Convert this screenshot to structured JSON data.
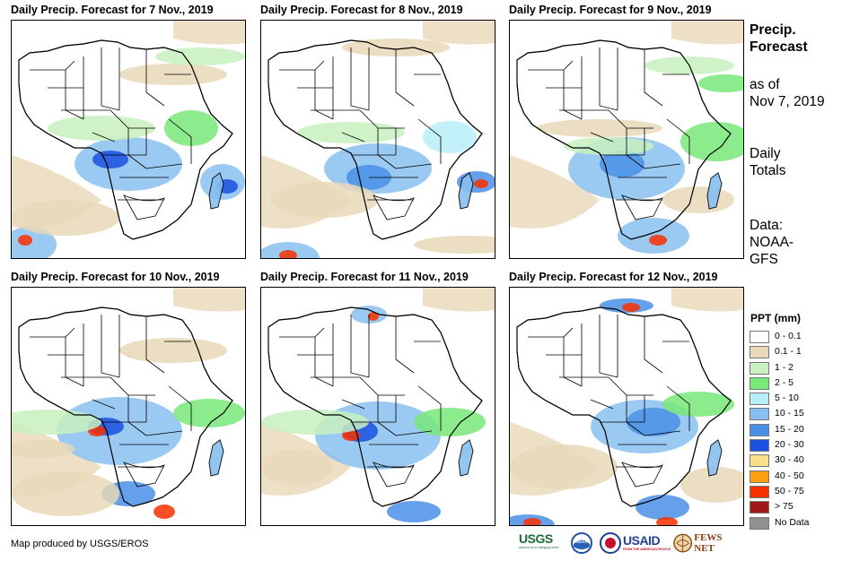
{
  "panels": [
    {
      "title": "Daily Precip. Forecast for 7 Nov., 2019"
    },
    {
      "title": "Daily Precip. Forecast for 8 Nov., 2019"
    },
    {
      "title": "Daily Precip. Forecast for 9 Nov., 2019"
    },
    {
      "title": "Daily Precip. Forecast for 10 Nov., 2019"
    },
    {
      "title": "Daily Precip. Forecast for 11 Nov., 2019"
    },
    {
      "title": "Daily Precip. Forecast for 12 Nov., 2019"
    }
  ],
  "side": {
    "heading_line1": "Precip.",
    "heading_line2": "Forecast",
    "asof_line1": "as of",
    "asof_line2": "Nov 7, 2019",
    "totals_line1": "Daily",
    "totals_line2": "Totals",
    "data_line1": "Data:",
    "data_line2": "NOAA-",
    "data_line3": "GFS"
  },
  "legend": {
    "title": "PPT (mm)",
    "items": [
      {
        "label": "0 - 0.1",
        "color": "#ffffff"
      },
      {
        "label": "0.1 - 1",
        "color": "#e8d8b8"
      },
      {
        "label": "1 - 2",
        "color": "#c8f0c0"
      },
      {
        "label": "2 - 5",
        "color": "#78e878"
      },
      {
        "label": "5 - 10",
        "color": "#b8eef8"
      },
      {
        "label": "10 - 15",
        "color": "#88bff0"
      },
      {
        "label": "15 - 20",
        "color": "#4a90e8"
      },
      {
        "label": "20 - 30",
        "color": "#1a50e0"
      },
      {
        "label": "30 - 40",
        "color": "#f8e088"
      },
      {
        "label": "40 - 50",
        "color": "#f8a010"
      },
      {
        "label": "50 - 75",
        "color": "#f83000"
      },
      {
        "label": "> 75",
        "color": "#a01818"
      },
      {
        "label": "No Data",
        "color": "#909090"
      }
    ]
  },
  "footer": {
    "credit": "Map produced by USGS/EROS",
    "logos": {
      "usgs": "USGS",
      "usgs_tagline": "science for a changing world",
      "noaa": "NOAA",
      "usaid": "USAID",
      "usaid_tagline": "FROM THE AMERICAN PEOPLE",
      "fewsnet": "FEWS NET"
    }
  }
}
